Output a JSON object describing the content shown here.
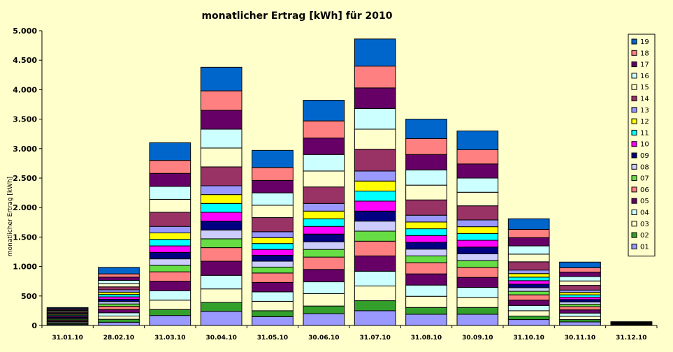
{
  "chart_data": {
    "type": "bar",
    "stacked": true,
    "title": "monatlicher Ertrag [kWh] für 2010",
    "xlabel": "",
    "ylabel": "monatlicher Ertrag [kWh]",
    "ylim": [
      0,
      5000
    ],
    "yticks": [
      0,
      500,
      1000,
      1500,
      2000,
      2500,
      3000,
      3500,
      4000,
      4500,
      5000
    ],
    "ytick_labels": [
      "0",
      "500",
      "1.000",
      "1.500",
      "2.000",
      "2.500",
      "3.000",
      "3.500",
      "4.000",
      "4.500",
      "5.000"
    ],
    "grid": false,
    "legend_position": "right",
    "categories": [
      "31.01.10",
      "28.02.10",
      "31.03.10",
      "30.04.10",
      "31.05.10",
      "30.06.10",
      "31.07.10",
      "31.08.10",
      "30.09.10",
      "31.10.10",
      "30.11.10",
      "31.12.10"
    ],
    "series": [
      {
        "name": "01",
        "color": "#9999ff",
        "values": [
          16,
          55,
          170,
          240,
          150,
          200,
          250,
          190,
          190,
          100,
          60,
          10
        ]
      },
      {
        "name": "02",
        "color": "#33a02c",
        "values": [
          16,
          50,
          100,
          150,
          100,
          130,
          170,
          115,
          115,
          60,
          40,
          3
        ]
      },
      {
        "name": "03",
        "color": "#ffffcc",
        "values": [
          16,
          55,
          160,
          230,
          160,
          210,
          250,
          190,
          170,
          90,
          55,
          3
        ]
      },
      {
        "name": "04",
        "color": "#ccffff",
        "values": [
          16,
          55,
          160,
          230,
          160,
          200,
          250,
          190,
          170,
          90,
          55,
          3
        ]
      },
      {
        "name": "05",
        "color": "#660066",
        "values": [
          16,
          55,
          160,
          240,
          160,
          210,
          260,
          190,
          170,
          90,
          55,
          3
        ]
      },
      {
        "name": "06",
        "color": "#ff8080",
        "values": [
          16,
          55,
          160,
          230,
          160,
          210,
          250,
          190,
          170,
          90,
          55,
          3
        ]
      },
      {
        "name": "07",
        "color": "#66dd44",
        "values": [
          16,
          40,
          110,
          150,
          100,
          130,
          170,
          115,
          115,
          60,
          40,
          3
        ]
      },
      {
        "name": "08",
        "color": "#ccccff",
        "values": [
          16,
          40,
          110,
          150,
          100,
          130,
          170,
          115,
          115,
          60,
          40,
          3
        ]
      },
      {
        "name": "09",
        "color": "#000080",
        "values": [
          16,
          40,
          110,
          150,
          100,
          130,
          170,
          115,
          115,
          60,
          40,
          3
        ]
      },
      {
        "name": "10",
        "color": "#ff00ff",
        "values": [
          16,
          40,
          110,
          150,
          100,
          130,
          170,
          115,
          115,
          60,
          40,
          3
        ]
      },
      {
        "name": "11",
        "color": "#00ffff",
        "values": [
          16,
          40,
          110,
          150,
          100,
          130,
          170,
          115,
          115,
          60,
          40,
          3
        ]
      },
      {
        "name": "12",
        "color": "#ffff00",
        "values": [
          16,
          40,
          110,
          150,
          100,
          130,
          170,
          115,
          115,
          60,
          40,
          3
        ]
      },
      {
        "name": "13",
        "color": "#9999ff",
        "values": [
          16,
          40,
          110,
          150,
          100,
          130,
          170,
          115,
          115,
          60,
          40,
          3
        ]
      },
      {
        "name": "14",
        "color": "#993366",
        "values": [
          16,
          50,
          240,
          320,
          240,
          280,
          370,
          260,
          240,
          140,
          80,
          3
        ]
      },
      {
        "name": "15",
        "color": "#ffffcc",
        "values": [
          16,
          55,
          220,
          320,
          210,
          270,
          340,
          250,
          230,
          130,
          75,
          3
        ]
      },
      {
        "name": "16",
        "color": "#ccffff",
        "values": [
          16,
          55,
          220,
          320,
          210,
          280,
          350,
          260,
          240,
          140,
          75,
          3
        ]
      },
      {
        "name": "17",
        "color": "#660066",
        "values": [
          16,
          55,
          220,
          320,
          210,
          280,
          350,
          260,
          240,
          140,
          75,
          3
        ]
      },
      {
        "name": "18",
        "color": "#ff8080",
        "values": [
          16,
          55,
          220,
          330,
          220,
          290,
          370,
          270,
          240,
          140,
          75,
          3
        ]
      },
      {
        "name": "19",
        "color": "#0066cc",
        "values": [
          16,
          110,
          300,
          400,
          290,
          350,
          460,
          330,
          320,
          180,
          95,
          2
        ]
      }
    ]
  }
}
